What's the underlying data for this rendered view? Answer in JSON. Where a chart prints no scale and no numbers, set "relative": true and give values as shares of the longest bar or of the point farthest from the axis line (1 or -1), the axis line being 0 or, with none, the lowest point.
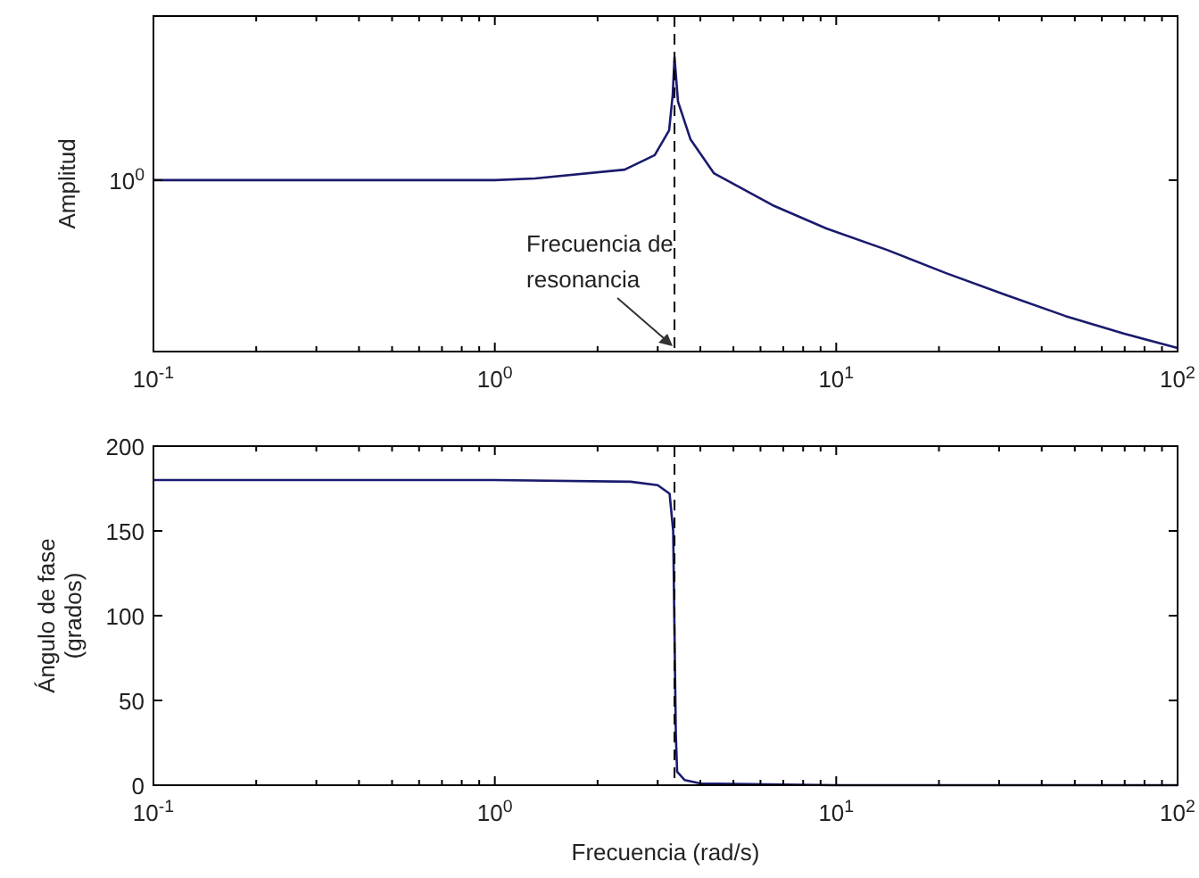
{
  "chart_data": [
    {
      "type": "line",
      "ylabel": "Amplitud",
      "log": "x",
      "relative": true,
      "xlim": [
        0.1,
        100
      ],
      "xticks": [
        {
          "value": 0.1,
          "label": "10$^{-1}$"
        },
        {
          "value": 0.2,
          "label": null
        },
        {
          "value": 0.3,
          "label": null
        },
        {
          "value": 0.4,
          "label": null
        },
        {
          "value": 0.5,
          "label": null
        },
        {
          "value": 0.6,
          "label": null
        },
        {
          "value": 0.7,
          "label": null
        },
        {
          "value": 0.8,
          "label": null
        },
        {
          "value": 0.9,
          "label": null
        },
        {
          "value": 1,
          "label": "10$^{0}$"
        },
        {
          "value": 2,
          "label": null
        },
        {
          "value": 3,
          "label": null
        },
        {
          "value": 4,
          "label": null
        },
        {
          "value": 5,
          "label": null
        },
        {
          "value": 6,
          "label": null
        },
        {
          "value": 7,
          "label": null
        },
        {
          "value": 8,
          "label": null
        },
        {
          "value": 9,
          "label": null
        },
        {
          "value": 10,
          "label": "10$^{1}$"
        },
        {
          "value": 20,
          "label": null
        },
        {
          "value": 30,
          "label": null
        },
        {
          "value": 40,
          "label": null
        },
        {
          "value": 50,
          "label": null
        },
        {
          "value": 60,
          "label": null
        },
        {
          "value": 70,
          "label": null
        },
        {
          "value": 80,
          "label": null
        },
        {
          "value": 90,
          "label": null
        },
        {
          "value": 100,
          "label": "10$^{2}$"
        }
      ],
      "series": [
        {
          "color": "#1a1a6e",
          "x": [
            0.1,
            1.0,
            1.31,
            2.4,
            2.94,
            3.24,
            3.32,
            3.36,
            3.44,
            3.74,
            4.38,
            6.51,
            9.35,
            14.1,
            20.9,
            31.1,
            46.9,
            69.8,
            100
          ],
          "values": [
            0.577,
            0.577,
            0.583,
            0.613,
            0.663,
            0.748,
            0.871,
            1,
            0.847,
            0.718,
            0.601,
            0.491,
            0.411,
            0.337,
            0.258,
            0.184,
            0.11,
            0.049,
            0
          ]
        }
      ],
      "ref_lines": [
        {
          "axis": "x",
          "value": 3.36,
          "color": "#000000",
          "line_style": "dashed"
        }
      ],
      "annotations": [
        "10$^{0}$",
        {
          "text": "Frecuencia de\nresonancia",
          "x": 3.36,
          "y": 0
        }
      ]
    },
    {
      "type": "line",
      "xlabel": "Frecuencia (rad/s)",
      "ylabel": "Ángulo de fase\n(grados)",
      "log": "x",
      "xlim": [
        0.1,
        100
      ],
      "ylim": [
        0,
        200
      ],
      "xticks": [
        {
          "value": 0.1,
          "label": "10$^{-1}$"
        },
        {
          "value": 0.2,
          "label": null
        },
        {
          "value": 0.3,
          "label": null
        },
        {
          "value": 0.4,
          "label": null
        },
        {
          "value": 0.5,
          "label": null
        },
        {
          "value": 0.6,
          "label": null
        },
        {
          "value": 0.7,
          "label": null
        },
        {
          "value": 0.8,
          "label": null
        },
        {
          "value": 0.9,
          "label": null
        },
        {
          "value": 1,
          "label": "10$^{0}$"
        },
        {
          "value": 2,
          "label": null
        },
        {
          "value": 3,
          "label": null
        },
        {
          "value": 4,
          "label": null
        },
        {
          "value": 5,
          "label": null
        },
        {
          "value": 6,
          "label": null
        },
        {
          "value": 7,
          "label": null
        },
        {
          "value": 8,
          "label": null
        },
        {
          "value": 9,
          "label": null
        },
        {
          "value": 10,
          "label": "10$^{1}$"
        },
        {
          "value": 20,
          "label": null
        },
        {
          "value": 30,
          "label": null
        },
        {
          "value": 40,
          "label": null
        },
        {
          "value": 50,
          "label": null
        },
        {
          "value": 60,
          "label": null
        },
        {
          "value": 70,
          "label": null
        },
        {
          "value": 80,
          "label": null
        },
        {
          "value": 90,
          "label": null
        },
        {
          "value": 100,
          "label": "10$^{2}$"
        }
      ],
      "yticks": [
        0,
        50,
        100,
        150,
        200
      ],
      "series": [
        {
          "color": "#1a1a6e",
          "x": [
            0.1,
            1.0,
            2.5,
            3.0,
            3.25,
            3.33,
            3.36,
            3.39,
            3.42,
            3.6,
            4.0,
            10,
            100
          ],
          "values": [
            180,
            180,
            179,
            177,
            172,
            150,
            90,
            30,
            8,
            3,
            1,
            0,
            0
          ]
        }
      ],
      "ref_lines": [
        {
          "axis": "x",
          "value": 3.36,
          "color": "#000000",
          "line_style": "dashed"
        }
      ]
    }
  ]
}
